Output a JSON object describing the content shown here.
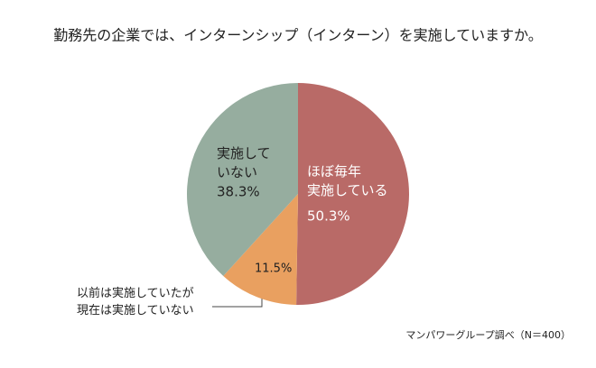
{
  "chart_data": {
    "type": "pie",
    "title": "勤務先の企業では、インターンシップ（インターン）を実施していますか。",
    "categories": [
      "ほぼ毎年\n実施している",
      "以前は実施していたが\n現在は実施していない",
      "実施して\nいない"
    ],
    "values": [
      50.3,
      11.5,
      38.3
    ],
    "value_labels": [
      "50.3%",
      "11.5%",
      "38.3%"
    ],
    "colors": [
      "#b96a67",
      "#e9a060",
      "#96ad9f"
    ],
    "source": "マンパワーグループ調べ（N＝400）"
  }
}
